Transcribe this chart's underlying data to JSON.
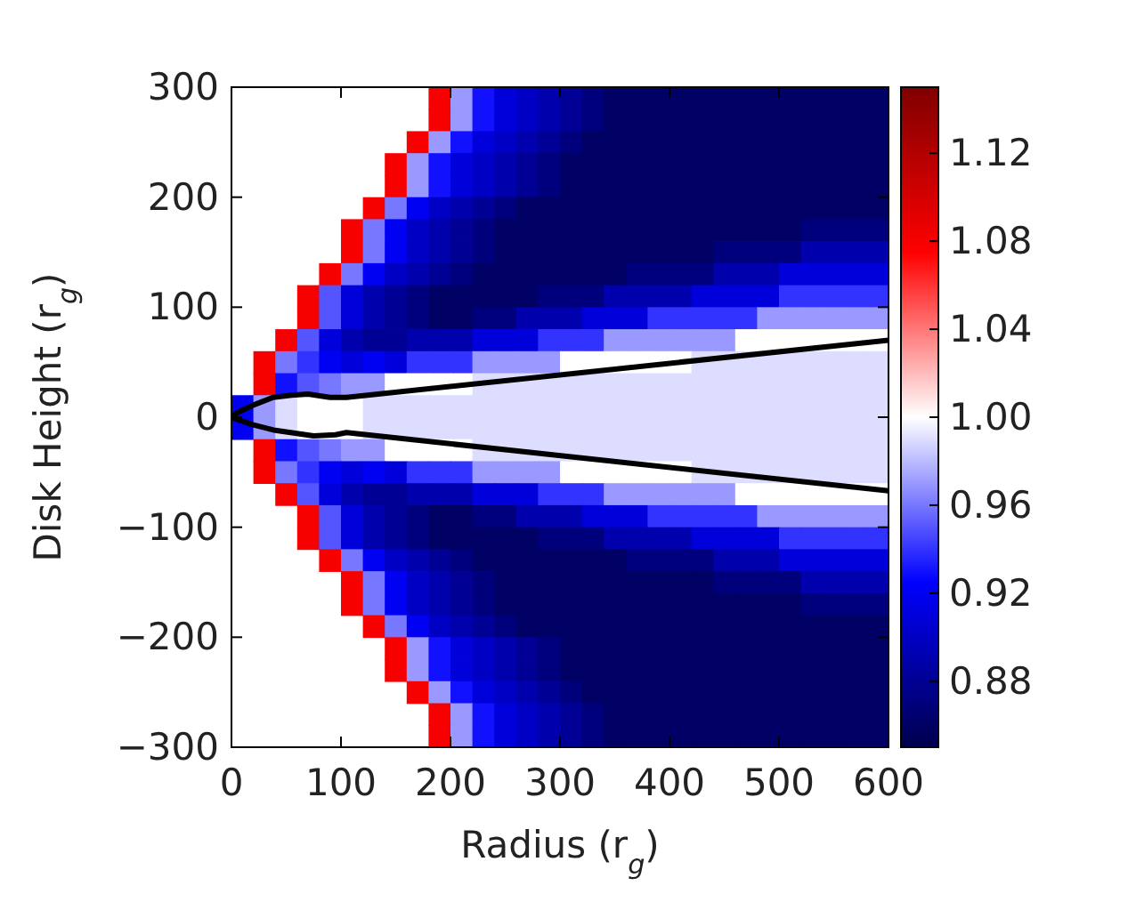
{
  "chart_data": {
    "type": "heatmap",
    "xlabel": "Radius (r$_{g}$)",
    "ylabel": "Disk Height (r$_{g}$)",
    "cells": [
      [
        null,
        null,
        null,
        null,
        null,
        null,
        null,
        null,
        null,
        1.08,
        0.97,
        0.93,
        0.91,
        0.9,
        0.89,
        0.88,
        0.87,
        0.86,
        0.86,
        0.86,
        0.86,
        0.86,
        0.86,
        0.86,
        0.86,
        0.86,
        0.86,
        0.86,
        0.86,
        0.86
      ],
      [
        null,
        null,
        null,
        null,
        null,
        null,
        null,
        null,
        null,
        1.08,
        0.97,
        0.93,
        0.91,
        0.9,
        0.89,
        0.88,
        0.87,
        0.86,
        0.86,
        0.86,
        0.86,
        0.86,
        0.86,
        0.86,
        0.86,
        0.86,
        0.86,
        0.86,
        0.86,
        0.86
      ],
      [
        null,
        null,
        null,
        null,
        null,
        null,
        null,
        null,
        1.08,
        0.97,
        0.93,
        0.91,
        0.9,
        0.89,
        0.88,
        0.87,
        0.86,
        0.86,
        0.86,
        0.86,
        0.86,
        0.86,
        0.86,
        0.86,
        0.86,
        0.86,
        0.86,
        0.86,
        0.86,
        0.86
      ],
      [
        null,
        null,
        null,
        null,
        null,
        null,
        null,
        1.08,
        0.97,
        0.93,
        0.91,
        0.9,
        0.89,
        0.88,
        0.87,
        0.86,
        0.86,
        0.86,
        0.86,
        0.86,
        0.86,
        0.86,
        0.86,
        0.86,
        0.86,
        0.86,
        0.86,
        0.86,
        0.86,
        0.86
      ],
      [
        null,
        null,
        null,
        null,
        null,
        null,
        null,
        1.08,
        0.97,
        0.93,
        0.91,
        0.9,
        0.89,
        0.88,
        0.87,
        0.86,
        0.86,
        0.86,
        0.86,
        0.86,
        0.86,
        0.86,
        0.86,
        0.86,
        0.86,
        0.86,
        0.86,
        0.86,
        0.86,
        0.86
      ],
      [
        null,
        null,
        null,
        null,
        null,
        null,
        1.08,
        0.96,
        0.92,
        0.9,
        0.89,
        0.88,
        0.87,
        0.86,
        0.86,
        0.86,
        0.86,
        0.86,
        0.86,
        0.86,
        0.86,
        0.86,
        0.86,
        0.86,
        0.86,
        0.86,
        0.86,
        0.86,
        0.86,
        0.86
      ],
      [
        null,
        null,
        null,
        null,
        null,
        1.08,
        0.96,
        0.92,
        0.9,
        0.89,
        0.88,
        0.87,
        0.86,
        0.86,
        0.86,
        0.86,
        0.86,
        0.86,
        0.86,
        0.86,
        0.86,
        0.86,
        0.86,
        0.86,
        0.86,
        0.86,
        0.87,
        0.87,
        0.87,
        0.87
      ],
      [
        null,
        null,
        null,
        null,
        null,
        1.08,
        0.96,
        0.92,
        0.9,
        0.89,
        0.88,
        0.87,
        0.86,
        0.86,
        0.86,
        0.86,
        0.86,
        0.86,
        0.86,
        0.86,
        0.86,
        0.86,
        0.87,
        0.87,
        0.87,
        0.87,
        0.89,
        0.89,
        0.89,
        0.89
      ],
      [
        null,
        null,
        null,
        null,
        1.08,
        0.96,
        0.92,
        0.9,
        0.89,
        0.88,
        0.87,
        0.86,
        0.86,
        0.86,
        0.86,
        0.86,
        0.86,
        0.86,
        0.87,
        0.87,
        0.87,
        0.87,
        0.89,
        0.89,
        0.89,
        0.91,
        0.91,
        0.91,
        0.91,
        0.91
      ],
      [
        null,
        null,
        null,
        1.08,
        0.95,
        0.91,
        0.89,
        0.88,
        0.87,
        0.86,
        0.86,
        0.86,
        0.86,
        0.86,
        0.87,
        0.87,
        0.87,
        0.89,
        0.89,
        0.89,
        0.89,
        0.91,
        0.91,
        0.91,
        0.91,
        0.94,
        0.94,
        0.94,
        0.94,
        0.94
      ],
      [
        null,
        null,
        null,
        1.08,
        0.95,
        0.91,
        0.89,
        0.88,
        0.87,
        0.86,
        0.86,
        0.87,
        0.87,
        0.89,
        0.89,
        0.89,
        0.91,
        0.91,
        0.91,
        0.94,
        0.94,
        0.94,
        0.94,
        0.94,
        0.97,
        0.97,
        0.97,
        0.97,
        0.97,
        0.97
      ],
      [
        null,
        null,
        1.08,
        0.95,
        0.91,
        0.89,
        0.88,
        0.88,
        0.89,
        0.89,
        0.89,
        0.91,
        0.91,
        0.91,
        0.94,
        0.94,
        0.94,
        0.97,
        0.97,
        0.97,
        0.97,
        0.97,
        0.97,
        1,
        1,
        1,
        1,
        1,
        1,
        1
      ],
      [
        null,
        1.08,
        0.96,
        0.94,
        0.92,
        0.91,
        0.92,
        0.91,
        0.94,
        0.94,
        0.94,
        0.97,
        0.97,
        0.97,
        0.97,
        1,
        1,
        1,
        1,
        1,
        1,
        0.99,
        0.99,
        0.99,
        0.99,
        0.99,
        0.99,
        0.99,
        0.99,
        0.99
      ],
      [
        null,
        1.08,
        0.93,
        0.95,
        0.96,
        0.97,
        0.97,
        1,
        1,
        1,
        1,
        0.99,
        0.99,
        0.99,
        0.99,
        0.99,
        0.99,
        0.99,
        0.99,
        0.99,
        0.99,
        0.99,
        0.99,
        0.99,
        0.99,
        0.99,
        0.99,
        0.99,
        0.99,
        0.99
      ],
      [
        0.92,
        0.97,
        0.99,
        1,
        1,
        1,
        0.99,
        0.99,
        0.99,
        0.99,
        0.99,
        0.99,
        0.99,
        0.99,
        0.99,
        0.99,
        0.99,
        0.99,
        0.99,
        0.99,
        0.99,
        0.99,
        0.99,
        0.99,
        0.99,
        0.99,
        0.99,
        0.99,
        0.99,
        0.99
      ],
      [
        0.92,
        0.97,
        0.99,
        1,
        1,
        1,
        0.99,
        0.99,
        0.99,
        0.99,
        0.99,
        0.99,
        0.99,
        0.99,
        0.99,
        0.99,
        0.99,
        0.99,
        0.99,
        0.99,
        0.99,
        0.99,
        0.99,
        0.99,
        0.99,
        0.99,
        0.99,
        0.99,
        0.99,
        0.99
      ],
      [
        null,
        1.08,
        0.93,
        0.95,
        0.96,
        0.97,
        0.97,
        1,
        1,
        1,
        1,
        0.99,
        0.99,
        0.99,
        0.99,
        0.99,
        0.99,
        0.99,
        0.99,
        0.99,
        0.99,
        0.99,
        0.99,
        0.99,
        0.99,
        0.99,
        0.99,
        0.99,
        0.99,
        0.99
      ],
      [
        null,
        1.08,
        0.96,
        0.94,
        0.92,
        0.91,
        0.92,
        0.91,
        0.94,
        0.94,
        0.94,
        0.97,
        0.97,
        0.97,
        0.97,
        1,
        1,
        1,
        1,
        1,
        1,
        0.99,
        0.99,
        0.99,
        0.99,
        0.99,
        0.99,
        0.99,
        0.99,
        0.99
      ],
      [
        null,
        null,
        1.08,
        0.95,
        0.91,
        0.89,
        0.88,
        0.88,
        0.89,
        0.89,
        0.89,
        0.91,
        0.91,
        0.91,
        0.94,
        0.94,
        0.94,
        0.97,
        0.97,
        0.97,
        0.97,
        0.97,
        0.97,
        1,
        1,
        1,
        1,
        1,
        1,
        1
      ],
      [
        null,
        null,
        null,
        1.08,
        0.95,
        0.91,
        0.89,
        0.88,
        0.87,
        0.86,
        0.86,
        0.87,
        0.87,
        0.89,
        0.89,
        0.89,
        0.91,
        0.91,
        0.91,
        0.94,
        0.94,
        0.94,
        0.94,
        0.94,
        0.97,
        0.97,
        0.97,
        0.97,
        0.97,
        0.97
      ],
      [
        null,
        null,
        null,
        1.08,
        0.95,
        0.91,
        0.89,
        0.88,
        0.87,
        0.86,
        0.86,
        0.86,
        0.86,
        0.86,
        0.87,
        0.87,
        0.87,
        0.89,
        0.89,
        0.89,
        0.89,
        0.91,
        0.91,
        0.91,
        0.91,
        0.94,
        0.94,
        0.94,
        0.94,
        0.94
      ],
      [
        null,
        null,
        null,
        null,
        1.08,
        0.96,
        0.92,
        0.9,
        0.89,
        0.88,
        0.87,
        0.86,
        0.86,
        0.86,
        0.86,
        0.86,
        0.86,
        0.86,
        0.87,
        0.87,
        0.87,
        0.87,
        0.89,
        0.89,
        0.89,
        0.91,
        0.91,
        0.91,
        0.91,
        0.91
      ],
      [
        null,
        null,
        null,
        null,
        null,
        1.08,
        0.96,
        0.92,
        0.9,
        0.89,
        0.88,
        0.87,
        0.86,
        0.86,
        0.86,
        0.86,
        0.86,
        0.86,
        0.86,
        0.86,
        0.86,
        0.86,
        0.87,
        0.87,
        0.87,
        0.87,
        0.89,
        0.89,
        0.89,
        0.89
      ],
      [
        null,
        null,
        null,
        null,
        null,
        1.08,
        0.96,
        0.92,
        0.9,
        0.89,
        0.88,
        0.87,
        0.86,
        0.86,
        0.86,
        0.86,
        0.86,
        0.86,
        0.86,
        0.86,
        0.86,
        0.86,
        0.86,
        0.86,
        0.86,
        0.86,
        0.87,
        0.87,
        0.87,
        0.87
      ],
      [
        null,
        null,
        null,
        null,
        null,
        null,
        1.08,
        0.96,
        0.92,
        0.9,
        0.89,
        0.88,
        0.87,
        0.86,
        0.86,
        0.86,
        0.86,
        0.86,
        0.86,
        0.86,
        0.86,
        0.86,
        0.86,
        0.86,
        0.86,
        0.86,
        0.86,
        0.86,
        0.86,
        0.86
      ],
      [
        null,
        null,
        null,
        null,
        null,
        null,
        null,
        1.08,
        0.97,
        0.93,
        0.91,
        0.9,
        0.89,
        0.88,
        0.87,
        0.86,
        0.86,
        0.86,
        0.86,
        0.86,
        0.86,
        0.86,
        0.86,
        0.86,
        0.86,
        0.86,
        0.86,
        0.86,
        0.86,
        0.86
      ],
      [
        null,
        null,
        null,
        null,
        null,
        null,
        null,
        1.08,
        0.97,
        0.93,
        0.91,
        0.9,
        0.89,
        0.88,
        0.87,
        0.86,
        0.86,
        0.86,
        0.86,
        0.86,
        0.86,
        0.86,
        0.86,
        0.86,
        0.86,
        0.86,
        0.86,
        0.86,
        0.86,
        0.86
      ],
      [
        null,
        null,
        null,
        null,
        null,
        null,
        null,
        null,
        1.08,
        0.97,
        0.93,
        0.91,
        0.9,
        0.89,
        0.88,
        0.87,
        0.86,
        0.86,
        0.86,
        0.86,
        0.86,
        0.86,
        0.86,
        0.86,
        0.86,
        0.86,
        0.86,
        0.86,
        0.86,
        0.86
      ],
      [
        null,
        null,
        null,
        null,
        null,
        null,
        null,
        null,
        null,
        1.08,
        0.97,
        0.93,
        0.91,
        0.9,
        0.89,
        0.88,
        0.87,
        0.86,
        0.86,
        0.86,
        0.86,
        0.86,
        0.86,
        0.86,
        0.86,
        0.86,
        0.86,
        0.86,
        0.86,
        0.86
      ],
      [
        null,
        null,
        null,
        null,
        null,
        null,
        null,
        null,
        null,
        1.08,
        0.97,
        0.93,
        0.91,
        0.9,
        0.89,
        0.88,
        0.87,
        0.86,
        0.86,
        0.86,
        0.86,
        0.86,
        0.86,
        0.86,
        0.86,
        0.86,
        0.86,
        0.86,
        0.86,
        0.86
      ]
    ],
    "clim": [
      0.85,
      1.15
    ],
    "cticks": [
      0.88,
      0.92,
      0.96,
      {
        "value": 1,
        "label": "1.00"
      },
      1.04,
      1.08,
      1.12
    ],
    "xlim": [
      0,
      600
    ],
    "xticks": [
      0,
      100,
      200,
      300,
      400,
      500,
      600
    ],
    "ylim": [
      -300,
      300
    ],
    "yticks": [
      {
        "value": -300,
        "label": "−300"
      },
      {
        "value": -200,
        "label": "−200"
      },
      {
        "value": -100,
        "label": "−100"
      },
      0,
      100,
      200,
      300
    ],
    "series": [
      {
        "type": "line",
        "color": "#000000",
        "x": [
          0,
          5,
          20,
          38,
          55,
          70,
          90,
          105,
          600
        ],
        "values": [
          0,
          4,
          11,
          18,
          20,
          21,
          18,
          18,
          70
        ]
      },
      {
        "type": "line",
        "color": "#000000",
        "x": [
          0,
          5,
          20,
          40,
          75,
          95,
          105,
          600
        ],
        "values": [
          0,
          -2,
          -7,
          -12,
          -17,
          -16,
          -14,
          -67
        ]
      }
    ]
  }
}
